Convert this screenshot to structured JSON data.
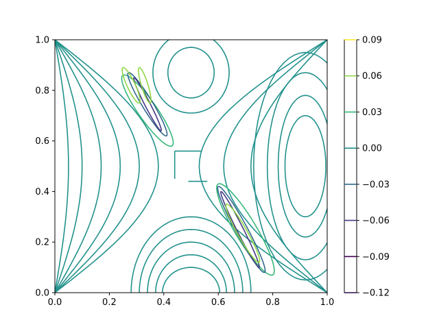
{
  "chart_data": {
    "type": "contour",
    "title": "",
    "xlabel": "",
    "ylabel": "",
    "xlim": [
      0.0,
      1.0
    ],
    "ylim": [
      0.0,
      1.0
    ],
    "x_ticks": [
      "0.0",
      "0.2",
      "0.4",
      "0.6",
      "0.8",
      "1.0"
    ],
    "y_ticks": [
      "0.0",
      "0.2",
      "0.4",
      "0.6",
      "0.8",
      "1.0"
    ],
    "grid": false,
    "colormap": "viridis",
    "colorbar": {
      "levels": [
        0.09,
        0.06,
        0.03,
        0.0,
        -0.03,
        -0.06,
        -0.09,
        -0.12
      ],
      "labels": [
        "0.09",
        "0.06",
        "0.03",
        "0.00",
        "−0.03",
        "−0.06",
        "−0.09",
        "−0.12"
      ],
      "colors": [
        "#fde725",
        "#8fd744",
        "#35b779",
        "#21918c",
        "#31688e",
        "#443983",
        "#440154",
        "#2d0a4a"
      ]
    },
    "contour_colors": {
      "zero": "#21918c",
      "low": "#31688e",
      "mid_low": "#443983",
      "positive": "#35b779",
      "high": "#8fd744"
    }
  }
}
